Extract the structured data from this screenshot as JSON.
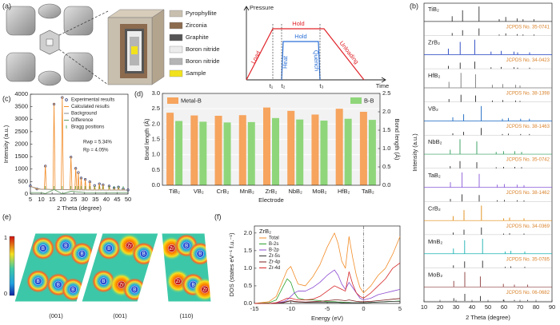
{
  "panel_labels": [
    "(a)",
    "(b)",
    "(c)",
    "(d)",
    "(e)",
    "(f)"
  ],
  "schematic": {
    "legend": [
      {
        "label": "Pyrophyllite",
        "color": "#c9bfae"
      },
      {
        "label": "Zirconia",
        "color": "#8b6a4e"
      },
      {
        "label": "Graphite",
        "color": "#555555"
      },
      {
        "label": "Boron nitride",
        "color": "#ececec"
      },
      {
        "label": "Boron nitride",
        "color": "#b5b5b5"
      },
      {
        "label": "Sample",
        "color": "#f2e21c"
      }
    ],
    "diagram": {
      "ylabel": "Pressure",
      "xlabel": "Time",
      "hold_outer": "Hold",
      "hold_inner": "Hold",
      "load": "Load",
      "heat": "Heat",
      "quench": "Quench",
      "unloading": "Unloading",
      "times": [
        "t₁",
        "t₂",
        "t₃"
      ],
      "outer_color": "#e0242a",
      "inner_color": "#2a6fd6"
    }
  },
  "maps": {
    "colorbar_ticks": [
      "1",
      "0"
    ],
    "items": [
      {
        "caption": "(001)",
        "atoms": [
          "B",
          "B",
          "B",
          "B",
          "B",
          "B"
        ]
      },
      {
        "caption": "(001)",
        "atoms": [
          "B",
          "Zr",
          "B",
          "B",
          "Zr",
          "B"
        ]
      },
      {
        "caption": "(110)",
        "atoms": [
          "Zr",
          "B",
          "B",
          "Zr",
          "B",
          "Zr"
        ]
      }
    ]
  },
  "chart_data": [
    {
      "type": "spectra",
      "xlabel": "2 Theta (degree)",
      "ylabel": "Intensity (a.u.)",
      "xlim": [
        10,
        90
      ],
      "xticks": [
        10,
        20,
        30,
        40,
        50,
        60,
        70,
        80,
        90
      ],
      "reference_color": "#d9822b",
      "series": [
        {
          "name": "TiB₂",
          "reference": "JCPDS No. 35-0741",
          "color": "#333333",
          "x": [
            27.6,
            34.1,
            44.4,
            57.0,
            61.1,
            68.2,
            71.9,
            78.7
          ],
          "values": [
            35,
            75,
            100,
            15,
            30,
            20,
            15,
            15
          ]
        },
        {
          "name": "ZrB₂",
          "reference": "JCPDS No. 34-0423",
          "color": "#1f3fbf",
          "x": [
            25.2,
            32.6,
            41.7,
            51.9,
            58.3,
            66.2,
            68.5,
            76.0
          ],
          "values": [
            40,
            85,
            100,
            20,
            25,
            20,
            15,
            15
          ]
        },
        {
          "name": "HfB₂",
          "reference": "JCPDS No. 38-1398",
          "color": "#777777",
          "x": [
            25.6,
            33.1,
            42.2,
            52.7,
            59.2,
            67.3,
            70.0
          ],
          "values": [
            40,
            100,
            90,
            20,
            25,
            20,
            15
          ]
        },
        {
          "name": "VB₂",
          "reference": "JCPDS No. 38-1463",
          "color": "#1565c0",
          "x": [
            28.0,
            34.8,
            45.8,
            59.0,
            62.7,
            70.4,
            75.9
          ],
          "values": [
            25,
            45,
            100,
            15,
            20,
            15,
            15
          ]
        },
        {
          "name": "NbB₂",
          "reference": "JCPDS No. 35-0742",
          "color": "#2e9a5a",
          "x": [
            26.4,
            32.5,
            43.0,
            55.1,
            59.7,
            66.7,
            71.0
          ],
          "values": [
            30,
            100,
            85,
            15,
            20,
            20,
            15
          ]
        },
        {
          "name": "TaB₂",
          "reference": "JCPDS No. 38-1462",
          "color": "#8a5ad8",
          "x": [
            26.5,
            33.8,
            44.5,
            55.8,
            60.2,
            68.2,
            72.5
          ],
          "values": [
            35,
            100,
            90,
            18,
            22,
            18,
            15
          ]
        },
        {
          "name": "CrB₂",
          "reference": "JCPDS No. 34-0369",
          "color": "#e08a10",
          "x": [
            28.2,
            35.0,
            45.9,
            59.8,
            63.5,
            72.5
          ],
          "values": [
            30,
            70,
            100,
            15,
            20,
            15
          ]
        },
        {
          "name": "MnB₂",
          "reference": "JCPDS No. 35-0785",
          "color": "#1ab0b0",
          "x": [
            28.4,
            35.4,
            46.6,
            60.7,
            64.3,
            73.0
          ],
          "values": [
            35,
            90,
            100,
            15,
            20,
            15
          ]
        },
        {
          "name": "MoB₂",
          "reference": "JCPDS No. 06-0682",
          "color": "#8b3a3a",
          "x": [
            28.6,
            35.5,
            45.2,
            59.6,
            66.5,
            74.8
          ],
          "values": [
            40,
            100,
            70,
            20,
            15,
            15
          ]
        }
      ]
    },
    {
      "type": "rietveld",
      "xlabel": "2 Theta (degree)",
      "ylabel": "Intensity (a.u.)",
      "xlim": [
        5,
        50
      ],
      "xticks": [
        5,
        10,
        15,
        20,
        25,
        30,
        35,
        40,
        45,
        50
      ],
      "ylim": [
        0,
        4000
      ],
      "yticks": [
        0,
        500,
        1000,
        1500,
        2000,
        2500,
        3000,
        3500,
        4000
      ],
      "annotations": [
        "Rwp = 5.34%",
        "Rp = 4.05%"
      ],
      "series": [
        {
          "name": "Experimental results",
          "style": "points",
          "color": "#1a2a6c",
          "x": [
            5,
            8,
            11.9,
            15.9,
            19.7,
            23.7,
            25.9,
            27.1,
            28.4,
            30.3,
            32.4,
            34.6,
            36.8,
            38.5,
            41.3,
            43.6,
            45.6,
            47.8,
            50
          ],
          "values": [
            330,
            205,
            1120,
            3600,
            3870,
            1480,
            1030,
            860,
            640,
            590,
            490,
            340,
            410,
            370,
            320,
            250,
            280,
            210,
            165
          ]
        },
        {
          "name": "Calculated results",
          "style": "line",
          "color": "#f28c28",
          "x": [
            5,
            8,
            11.4,
            11.9,
            12.4,
            15.4,
            15.9,
            16.4,
            19.2,
            19.7,
            20.2,
            23.2,
            23.7,
            24.2,
            25.5,
            25.9,
            26.4,
            26.8,
            27.1,
            27.5,
            28.1,
            28.4,
            28.8,
            30.0,
            30.3,
            30.7,
            32.0,
            32.4,
            32.8,
            34.3,
            34.6,
            35.0,
            36.4,
            36.8,
            37.2,
            38.1,
            38.5,
            38.9,
            41.0,
            41.3,
            41.7,
            43.3,
            43.6,
            44.0,
            45.3,
            45.6,
            46.0,
            47.5,
            47.8,
            48.2,
            50
          ],
          "values": [
            320,
            200,
            190,
            1150,
            190,
            180,
            3650,
            180,
            180,
            3900,
            180,
            170,
            1500,
            170,
            170,
            1050,
            170,
            170,
            850,
            170,
            170,
            650,
            170,
            170,
            600,
            170,
            165,
            500,
            165,
            165,
            330,
            165,
            165,
            420,
            165,
            165,
            380,
            165,
            160,
            330,
            160,
            160,
            260,
            160,
            160,
            290,
            160,
            160,
            200,
            160,
            160
          ]
        },
        {
          "name": "Background",
          "style": "line",
          "color": "#8a8a8a",
          "x": [
            5,
            10,
            20,
            30,
            40,
            50
          ],
          "values": [
            300,
            190,
            175,
            165,
            160,
            160
          ]
        },
        {
          "name": "Difference",
          "style": "line",
          "color": "#5f9a5f",
          "x": [
            5,
            10,
            11.9,
            15.9,
            19.7,
            23.7,
            30,
            40,
            50
          ],
          "values": [
            60,
            55,
            20,
            180,
            10,
            110,
            60,
            55,
            60
          ]
        }
      ],
      "bragg": {
        "name": "Bragg positions",
        "color": "#3aa03a",
        "x": [
          11.9,
          15.9,
          19.7,
          23.7,
          25.9,
          27.1,
          28.4,
          30.3,
          32.4,
          34.6,
          36.8,
          38.5,
          41.3,
          43.6,
          45.6,
          47.8
        ]
      }
    },
    {
      "type": "bar",
      "xlabel": "Electrode",
      "ylabel": "Bond length (Å)",
      "y2label": "Bond length (Å)",
      "categories": [
        "TiB₂",
        "VB₂",
        "CrB₂",
        "MnB₂",
        "ZrB₂",
        "NbB₂",
        "MoB₂",
        "HfB₂",
        "TaB₂"
      ],
      "ylim": [
        0,
        3
      ],
      "yticks": [
        {
          "value": 0,
          "label": "0.0"
        },
        0.5,
        {
          "value": 1,
          "label": "1.0"
        },
        1.5,
        {
          "value": 2,
          "label": "2.0"
        },
        2.5,
        {
          "value": 3,
          "label": "3.0"
        }
      ],
      "y2lim": [
        0,
        2.5
      ],
      "y2ticks": [
        {
          "value": 0,
          "label": "0.0"
        },
        0.5,
        {
          "value": 1,
          "label": "1.0"
        },
        1.5,
        {
          "value": 2,
          "label": "2.0"
        },
        2.5
      ],
      "series": [
        {
          "name": "Metal-B",
          "color": "#f6a45e",
          "values": [
            2.37,
            2.28,
            2.27,
            2.29,
            2.54,
            2.43,
            2.31,
            2.5,
            2.4
          ]
        },
        {
          "name": "B-B",
          "color": "#8fd67a",
          "axis": "y2",
          "values": [
            1.75,
            1.73,
            1.71,
            1.72,
            1.83,
            1.79,
            1.76,
            1.81,
            1.78
          ]
        }
      ]
    },
    {
      "type": "line",
      "title": "ZrB₂",
      "xlabel": "Energy (eV)",
      "ylabel": "DOS (states eV⁻¹ f.u.⁻¹)",
      "xlim": [
        -15,
        5
      ],
      "xticks": [
        -15,
        -10,
        -5,
        0,
        5
      ],
      "ylim": [
        0,
        2.2
      ],
      "yticks": [
        {
          "value": 0,
          "label": "0.0"
        },
        0.5,
        {
          "value": 1,
          "label": "1.0"
        },
        1.5,
        {
          "value": 2,
          "label": "2.0"
        }
      ],
      "reference_line_x": 0,
      "x": [
        -15,
        -13,
        -12,
        -11,
        -10.5,
        -10,
        -9.5,
        -9,
        -8,
        -7,
        -6,
        -5,
        -4,
        -3.5,
        -3,
        -2.5,
        -2,
        -1.5,
        -1,
        -0.5,
        0,
        1,
        2,
        3,
        4,
        5
      ],
      "series": [
        {
          "name": "Total",
          "color": "#f28c28",
          "values": [
            0,
            0.05,
            0.2,
            0.7,
            0.95,
            1.05,
            0.8,
            0.55,
            0.5,
            0.75,
            1.1,
            1.6,
            2.0,
            1.7,
            1.2,
            1.0,
            1.9,
            1.3,
            0.8,
            0.45,
            0.3,
            0.5,
            0.8,
            1.0,
            1.4,
            1.9
          ]
        },
        {
          "name": "B-2s",
          "color": "#2ca02c",
          "values": [
            0,
            0.02,
            0.1,
            0.5,
            0.7,
            0.6,
            0.3,
            0.15,
            0.1,
            0.1,
            0.08,
            0.05,
            0.05,
            0.04,
            0.04,
            0.03,
            0.03,
            0.02,
            0.02,
            0.02,
            0.02,
            0.03,
            0.04,
            0.05,
            0.06,
            0.07
          ]
        },
        {
          "name": "B-2p",
          "color": "#8b4bd0",
          "values": [
            0,
            0,
            0.02,
            0.05,
            0.1,
            0.2,
            0.3,
            0.35,
            0.35,
            0.45,
            0.6,
            0.8,
            0.95,
            0.8,
            0.55,
            0.4,
            0.6,
            0.45,
            0.3,
            0.15,
            0.1,
            0.15,
            0.25,
            0.3,
            0.35,
            0.4
          ]
        },
        {
          "name": "Zr-5s",
          "color": "#333333",
          "values": [
            0,
            0,
            0,
            0.02,
            0.05,
            0.07,
            0.05,
            0.04,
            0.03,
            0.03,
            0.03,
            0.03,
            0.03,
            0.03,
            0.02,
            0.02,
            0.02,
            0.02,
            0.02,
            0.02,
            0.02,
            0.03,
            0.04,
            0.05,
            0.06,
            0.06
          ]
        },
        {
          "name": "Zr-4p",
          "color": "#7a1f1f",
          "values": [
            0,
            0,
            0,
            0.03,
            0.06,
            0.08,
            0.06,
            0.05,
            0.04,
            0.05,
            0.06,
            0.08,
            0.1,
            0.1,
            0.09,
            0.08,
            0.1,
            0.08,
            0.06,
            0.05,
            0.05,
            0.06,
            0.08,
            0.1,
            0.12,
            0.14
          ]
        },
        {
          "name": "Zr-4d",
          "color": "#d62728",
          "values": [
            0,
            0,
            0.02,
            0.1,
            0.15,
            0.15,
            0.12,
            0.1,
            0.1,
            0.12,
            0.2,
            0.35,
            0.5,
            0.45,
            0.4,
            0.35,
            0.9,
            0.55,
            0.3,
            0.2,
            0.15,
            0.3,
            0.5,
            0.7,
            1.0,
            1.15
          ]
        }
      ]
    }
  ]
}
